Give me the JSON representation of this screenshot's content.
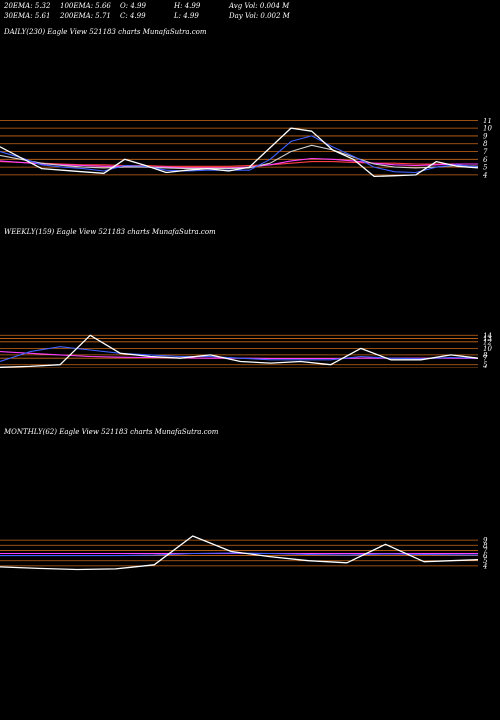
{
  "stats_row1": [
    {
      "label": "20EMA: 5.32"
    },
    {
      "label": "100EMA: 5.66"
    },
    {
      "label": "O: 4.99"
    },
    {
      "label": "H: 4.99"
    },
    {
      "label": "Avg Vol: 0.004 M"
    }
  ],
  "stats_row2": [
    {
      "label": "30EMA: 5.61"
    },
    {
      "label": "200EMA: 5.71"
    },
    {
      "label": "C: 4.99"
    },
    {
      "label": "L: 4.99"
    },
    {
      "label": "Day Vol: 0.002  M"
    }
  ],
  "panels": {
    "daily": {
      "label": "DAILY(230) Eagle   View  521183 charts MunafaSutra.com"
    },
    "weekly": {
      "label": "WEEKLY(159) Eagle   View  521183 charts MunafaSutra.com"
    },
    "monthly": {
      "label": "MONTHLY(62) Eagle   View  521183 charts MunafaSutra.com"
    }
  },
  "colors": {
    "price": "#ffffff",
    "ema_short": "#4060ff",
    "ema_mid": "#d0d0d0",
    "ema_long": "#ff40ff",
    "ema_longest": "#ff4040",
    "grid": "#cc6a1a"
  },
  "chart_data": [
    {
      "type": "line",
      "title": "DAILY(230) Eagle   View  521183 charts MunafaSutra.com",
      "ylim": [
        3.6,
        11.3
      ],
      "y_ticks": [
        4,
        5,
        6,
        7,
        8,
        9,
        10,
        11
      ],
      "grid": true,
      "x": [
        0,
        10,
        20,
        30,
        40,
        50,
        60,
        70,
        80,
        90,
        100,
        110,
        120,
        130,
        140,
        150,
        160,
        170,
        180,
        190,
        200,
        210,
        220,
        230
      ],
      "series": [
        {
          "color": "#ffffff",
          "values": [
            7.6,
            6.2,
            4.8,
            4.6,
            4.4,
            4.2,
            6.0,
            5.2,
            4.3,
            4.6,
            4.8,
            4.5,
            5.0,
            7.5,
            10.0,
            9.6,
            7.2,
            6.0,
            3.8,
            3.9,
            4.0,
            5.7,
            5.1,
            4.9
          ]
        },
        {
          "color": "#4060ff",
          "values": [
            7.0,
            6.2,
            5.3,
            5.0,
            4.8,
            4.5,
            5.2,
            5.1,
            4.6,
            4.5,
            4.6,
            4.6,
            4.6,
            6.0,
            8.3,
            9.0,
            7.6,
            6.4,
            5.0,
            4.4,
            4.3,
            5.0,
            5.3,
            5.0
          ]
        },
        {
          "color": "#d0d0d0",
          "values": [
            6.5,
            6.0,
            5.5,
            5.2,
            5.0,
            4.9,
            5.0,
            5.0,
            4.9,
            4.8,
            4.8,
            4.8,
            4.9,
            5.5,
            7.0,
            7.8,
            7.2,
            6.3,
            5.4,
            5.0,
            4.9,
            5.0,
            5.2,
            5.1
          ]
        },
        {
          "color": "#ff40ff",
          "values": [
            5.8,
            5.6,
            5.4,
            5.3,
            5.2,
            5.1,
            5.1,
            5.0,
            5.0,
            4.9,
            4.9,
            4.9,
            5.0,
            5.3,
            5.8,
            6.1,
            6.0,
            5.8,
            5.5,
            5.3,
            5.2,
            5.3,
            5.4,
            5.4
          ]
        },
        {
          "color": "#ff4040",
          "values": [
            5.7,
            5.6,
            5.5,
            5.4,
            5.3,
            5.3,
            5.2,
            5.2,
            5.1,
            5.1,
            5.1,
            5.1,
            5.2,
            5.3,
            5.5,
            5.7,
            5.7,
            5.6,
            5.5,
            5.5,
            5.4,
            5.4,
            5.4,
            5.4
          ]
        }
      ]
    },
    {
      "type": "line",
      "title": "WEEKLY(159) Eagle   View  521183 charts MunafaSutra.com",
      "ylim": [
        4.0,
        15.0
      ],
      "y_ticks": [
        4,
        5,
        7,
        8,
        10,
        12,
        13,
        14
      ],
      "grid": true,
      "x": [
        0,
        10,
        20,
        30,
        40,
        50,
        60,
        70,
        80,
        90,
        100,
        110,
        120,
        130,
        140,
        150,
        159
      ],
      "series": [
        {
          "color": "#ffffff",
          "values": [
            4.2,
            4.5,
            5.0,
            14.0,
            8.5,
            7.5,
            7.0,
            8.0,
            6.0,
            5.5,
            6.0,
            5.0,
            10.0,
            6.5,
            6.5,
            8.0,
            7.0
          ]
        },
        {
          "color": "#4060ff",
          "values": [
            6.0,
            9.0,
            10.5,
            9.5,
            8.5,
            8.0,
            7.5,
            7.5,
            7.0,
            6.5,
            6.5,
            6.5,
            7.5,
            7.0,
            6.8,
            7.2,
            7.0
          ]
        },
        {
          "color": "#ff40ff",
          "values": [
            9.0,
            8.5,
            8.0,
            7.5,
            7.3,
            7.2,
            7.1,
            7.0,
            7.0,
            6.9,
            6.9,
            6.9,
            7.0,
            7.0,
            7.0,
            7.0,
            6.9
          ]
        }
      ]
    },
    {
      "type": "line",
      "title": "MONTHLY(62) Eagle   View  521183 charts MunafaSutra.com",
      "ylim": [
        3.0,
        10.0
      ],
      "y_ticks": [
        4,
        5,
        6,
        7,
        8,
        9
      ],
      "grid": true,
      "x": [
        0,
        5,
        10,
        15,
        20,
        25,
        30,
        35,
        40,
        45,
        50,
        55,
        62
      ],
      "series": [
        {
          "color": "#ffffff",
          "values": [
            3.8,
            3.5,
            3.3,
            3.4,
            4.2,
            9.8,
            6.8,
            5.8,
            5.0,
            4.6,
            8.2,
            4.8,
            5.2
          ]
        },
        {
          "color": "#4060ff",
          "values": [
            6.0,
            6.0,
            6.0,
            6.0,
            6.1,
            6.4,
            6.5,
            6.4,
            6.2,
            6.1,
            6.3,
            6.2,
            6.1
          ]
        },
        {
          "color": "#ff40ff",
          "values": [
            6.4,
            6.4,
            6.4,
            6.4,
            6.4,
            6.4,
            6.4,
            6.4,
            6.4,
            6.4,
            6.4,
            6.4,
            6.4
          ]
        }
      ]
    }
  ]
}
